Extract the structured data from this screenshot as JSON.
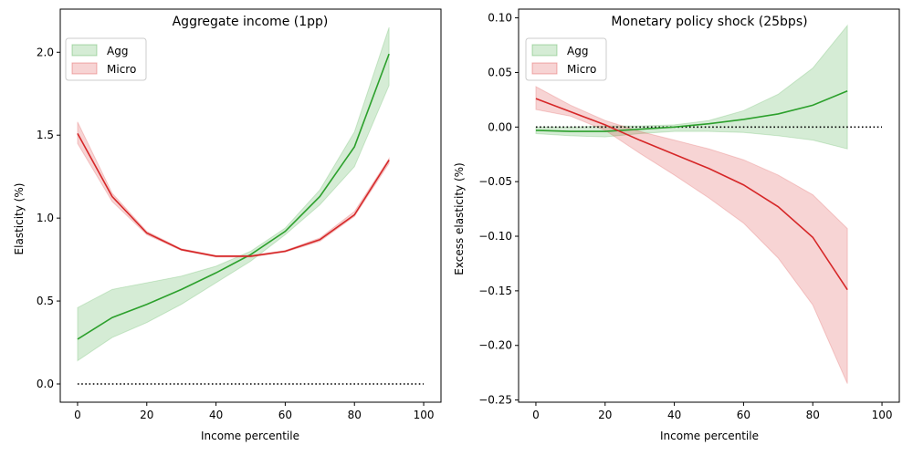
{
  "colors": {
    "agg": "#2ca02c",
    "micro": "#d62728",
    "reference": "#000000"
  },
  "chart_data": [
    {
      "type": "line",
      "title": "Aggregate income (1pp)",
      "xlabel": "Income percentile",
      "ylabel": "Elasticity (%)",
      "xlim": [
        -5,
        105
      ],
      "ylim": [
        -0.11,
        2.26
      ],
      "xticks": [
        0,
        20,
        40,
        60,
        80,
        100
      ],
      "xtick_labels": [
        "0",
        "20",
        "40",
        "60",
        "80",
        "100"
      ],
      "yticks": [
        0.0,
        0.5,
        1.0,
        1.5,
        2.0
      ],
      "ytick_labels": [
        "0.0",
        "0.5",
        "1.0",
        "1.5",
        "2.0"
      ],
      "legend_position": "upper-left",
      "x": [
        0,
        10,
        20,
        30,
        40,
        50,
        60,
        70,
        80,
        90
      ],
      "series": [
        {
          "name": "Agg",
          "color_key": "agg",
          "values": [
            0.27,
            0.4,
            0.48,
            0.57,
            0.67,
            0.78,
            0.92,
            1.13,
            1.43,
            1.99
          ],
          "lower": [
            0.14,
            0.28,
            0.37,
            0.48,
            0.61,
            0.74,
            0.9,
            1.08,
            1.31,
            1.8
          ],
          "upper": [
            0.46,
            0.57,
            0.61,
            0.65,
            0.71,
            0.8,
            0.94,
            1.17,
            1.52,
            2.15
          ]
        },
        {
          "name": "Micro",
          "color_key": "micro",
          "values": [
            1.51,
            1.13,
            0.91,
            0.81,
            0.77,
            0.77,
            0.8,
            0.87,
            1.02,
            1.35
          ],
          "lower": [
            1.45,
            1.1,
            0.9,
            0.805,
            0.765,
            0.765,
            0.795,
            0.86,
            1.01,
            1.33
          ],
          "upper": [
            1.58,
            1.15,
            0.92,
            0.815,
            0.775,
            0.775,
            0.805,
            0.88,
            1.04,
            1.36
          ]
        }
      ],
      "reference_line": {
        "y": 0,
        "x": [
          0,
          100
        ],
        "style": "dotted"
      }
    },
    {
      "type": "line",
      "title": "Monetary policy shock (25bps)",
      "xlabel": "Income percentile",
      "ylabel": "Excess elasticity (%)",
      "xlim": [
        -5,
        105
      ],
      "ylim": [
        -0.252,
        0.108
      ],
      "xticks": [
        0,
        20,
        40,
        60,
        80,
        100
      ],
      "xtick_labels": [
        "0",
        "20",
        "40",
        "60",
        "80",
        "100"
      ],
      "yticks": [
        -0.25,
        -0.2,
        -0.15,
        -0.1,
        -0.05,
        0.0,
        0.05,
        0.1
      ],
      "ytick_labels": [
        "−0.25",
        "−0.20",
        "−0.15",
        "−0.10",
        "−0.05",
        "0.00",
        "0.05",
        "0.10"
      ],
      "legend_position": "upper-left",
      "x": [
        0,
        10,
        20,
        30,
        40,
        50,
        60,
        70,
        80,
        90
      ],
      "series": [
        {
          "name": "Agg",
          "color_key": "agg",
          "values": [
            -0.003,
            -0.004,
            -0.004,
            -0.002,
            0.0,
            0.003,
            0.007,
            0.012,
            0.02,
            0.033
          ],
          "lower": [
            -0.006,
            -0.008,
            -0.009,
            -0.006,
            -0.004,
            -0.004,
            -0.005,
            -0.008,
            -0.012,
            -0.02
          ],
          "upper": [
            0.0,
            0.0,
            0.001,
            0.001,
            0.002,
            0.006,
            0.015,
            0.03,
            0.054,
            0.093
          ]
        },
        {
          "name": "Micro",
          "color_key": "micro",
          "values": [
            0.026,
            0.014,
            0.002,
            -0.012,
            -0.025,
            -0.038,
            -0.053,
            -0.073,
            -0.101,
            -0.149
          ],
          "lower": [
            0.016,
            0.01,
            -0.003,
            -0.024,
            -0.044,
            -0.065,
            -0.088,
            -0.12,
            -0.163,
            -0.235
          ],
          "upper": [
            0.037,
            0.02,
            0.006,
            -0.004,
            -0.012,
            -0.02,
            -0.03,
            -0.044,
            -0.062,
            -0.093
          ]
        }
      ],
      "reference_line": {
        "y": 0,
        "x": [
          0,
          100
        ],
        "style": "dotted"
      }
    }
  ]
}
